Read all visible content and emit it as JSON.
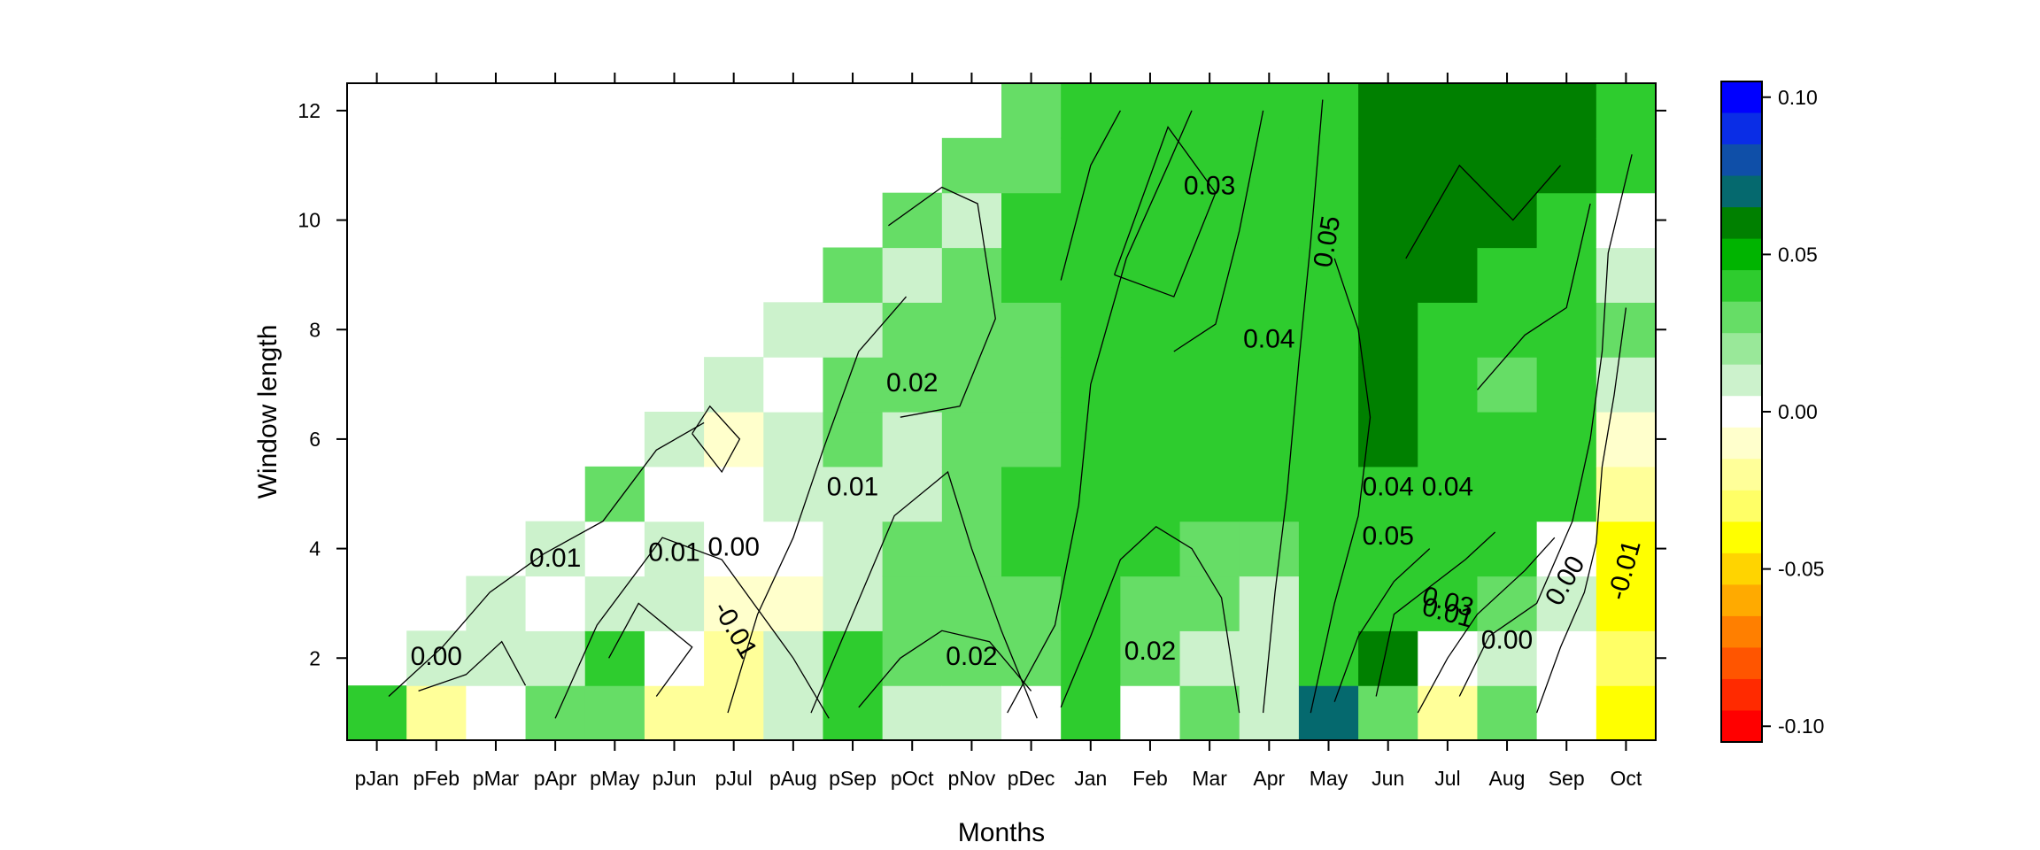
{
  "chart_data": {
    "type": "heatmap",
    "xlabel": "Months",
    "ylabel": "Window length",
    "months": [
      "pJan",
      "pFeb",
      "pMar",
      "pApr",
      "pMay",
      "pJun",
      "pJul",
      "pAug",
      "pSep",
      "pOct",
      "pNov",
      "pDec",
      "Jan",
      "Feb",
      "Mar",
      "Apr",
      "May",
      "Jun",
      "Jul",
      "Aug",
      "Sep",
      "Oct"
    ],
    "y_ticks": [
      2,
      4,
      6,
      8,
      10,
      12
    ],
    "y_range": [
      0.5,
      12.5
    ],
    "window_lengths": [
      1,
      2,
      3,
      4,
      5,
      6,
      7,
      8,
      9,
      10,
      11,
      12
    ],
    "colorbar": {
      "ticks": [
        {
          "value": 0.1,
          "label": "0.10"
        },
        {
          "value": 0.05,
          "label": "0.05"
        },
        {
          "value": 0.0,
          "label": "0.00"
        },
        {
          "value": -0.05,
          "label": "-0.05"
        },
        {
          "value": -0.1,
          "label": "-0.10"
        }
      ],
      "levels_top_to_bottom": [
        "#0000ff",
        "#0a2de6",
        "#0f4fa8",
        "#05696e",
        "#008000",
        "#00b400",
        "#2ecc2e",
        "#66dd66",
        "#99e899",
        "#ccf2cc",
        "#ffffff",
        "#ffffcc",
        "#ffff99",
        "#ffff66",
        "#ffff00",
        "#ffd400",
        "#ffaa00",
        "#ff7f00",
        "#ff5500",
        "#ff2a00",
        "#ff0000"
      ]
    },
    "values_by_month": [
      {
        "month": "pJan",
        "values": [
          0.035
        ]
      },
      {
        "month": "pFeb",
        "values": [
          -0.015,
          0.015
        ]
      },
      {
        "month": "pMar",
        "values": [
          0.0,
          0.005,
          0.015
        ]
      },
      {
        "month": "pApr",
        "values": [
          0.025,
          0.015,
          0.0,
          0.015
        ]
      },
      {
        "month": "pMay",
        "values": [
          0.025,
          0.035,
          0.015,
          0.0,
          0.025
        ]
      },
      {
        "month": "pJun",
        "values": [
          -0.015,
          0.0,
          0.015,
          0.015,
          0.0,
          0.015
        ]
      },
      {
        "month": "pJul",
        "values": [
          -0.015,
          -0.015,
          -0.005,
          0.0,
          0.0,
          -0.005,
          0.015
        ]
      },
      {
        "month": "pAug",
        "values": [
          0.015,
          0.015,
          -0.005,
          0.0,
          0.015,
          0.015,
          0.0,
          0.015
        ]
      },
      {
        "month": "pSep",
        "values": [
          0.035,
          0.035,
          0.015,
          0.015,
          0.015,
          0.025,
          0.025,
          0.015,
          0.025
        ]
      },
      {
        "month": "pOct",
        "values": [
          0.015,
          0.025,
          0.025,
          0.025,
          0.015,
          0.015,
          0.025,
          0.025,
          0.015,
          0.025
        ]
      },
      {
        "month": "pNov",
        "values": [
          0.015,
          0.025,
          0.025,
          0.025,
          0.025,
          0.025,
          0.025,
          0.025,
          0.025,
          0.015,
          0.025
        ]
      },
      {
        "month": "pDec",
        "values": [
          0.0,
          0.025,
          0.025,
          0.035,
          0.035,
          0.025,
          0.025,
          0.025,
          0.035,
          0.035,
          0.025,
          0.025
        ]
      },
      {
        "month": "Jan",
        "values": [
          0.045,
          0.035,
          0.035,
          0.045,
          0.045,
          0.045,
          0.035,
          0.035,
          0.035,
          0.035,
          0.035,
          0.035
        ]
      },
      {
        "month": "Feb",
        "values": [
          0.0,
          0.025,
          0.025,
          0.035,
          0.035,
          0.045,
          0.045,
          0.035,
          0.035,
          0.035,
          0.035,
          0.035
        ]
      },
      {
        "month": "Mar",
        "values": [
          0.025,
          0.015,
          0.025,
          0.025,
          0.035,
          0.045,
          0.045,
          0.045,
          0.035,
          0.035,
          0.035,
          0.035
        ]
      },
      {
        "month": "Apr",
        "values": [
          0.015,
          0.015,
          0.015,
          0.025,
          0.035,
          0.035,
          0.045,
          0.045,
          0.045,
          0.035,
          0.035,
          0.035
        ]
      },
      {
        "month": "May",
        "values": [
          0.07,
          0.045,
          0.045,
          0.035,
          0.045,
          0.045,
          0.045,
          0.045,
          0.045,
          0.045,
          0.045,
          0.035
        ]
      },
      {
        "month": "Jun",
        "values": [
          0.025,
          0.06,
          0.045,
          0.045,
          0.045,
          0.055,
          0.055,
          0.055,
          0.06,
          0.06,
          0.06,
          0.055
        ]
      },
      {
        "month": "Jul",
        "values": [
          -0.015,
          0.0,
          0.035,
          0.035,
          0.045,
          0.035,
          0.045,
          0.045,
          0.055,
          0.055,
          0.055,
          0.055
        ]
      },
      {
        "month": "Aug",
        "values": [
          0.025,
          0.015,
          0.025,
          0.035,
          0.045,
          0.035,
          0.025,
          0.045,
          0.045,
          0.055,
          0.055,
          0.055
        ]
      },
      {
        "month": "Sep",
        "values": [
          0.0,
          0.0,
          0.015,
          0.0,
          0.035,
          0.045,
          0.045,
          0.045,
          0.035,
          0.035,
          0.055,
          0.055
        ]
      },
      {
        "month": "Oct",
        "values": [
          -0.035,
          -0.025,
          -0.035,
          -0.035,
          -0.015,
          -0.005,
          0.015,
          0.025,
          0.015,
          0.0,
          0.035,
          0.035
        ]
      }
    ],
    "contour_labels": [
      {
        "text": "0.00",
        "month": "pFeb",
        "window": 2.0,
        "rotate": 0
      },
      {
        "text": "0.01",
        "month": "pApr",
        "window": 3.8,
        "rotate": 0
      },
      {
        "text": "0.01",
        "month": "pJun",
        "window": 3.9,
        "rotate": 0
      },
      {
        "text": "0.00",
        "month": "pJul",
        "window": 4.0,
        "rotate": 0
      },
      {
        "text": "-0.01",
        "month": "pJul",
        "window": 2.5,
        "rotate": 60
      },
      {
        "text": "0.01",
        "month": "pSep",
        "window": 5.1,
        "rotate": 0
      },
      {
        "text": "0.02",
        "month": "pOct",
        "window": 7.0,
        "rotate": 0
      },
      {
        "text": "0.02",
        "month": "pNov",
        "window": 2.0,
        "rotate": 0
      },
      {
        "text": "0.02",
        "month": "Feb",
        "window": 2.1,
        "rotate": 0
      },
      {
        "text": "0.03",
        "month": "Mar",
        "window": 10.6,
        "rotate": 0
      },
      {
        "text": "0.04",
        "month": "Apr",
        "window": 7.8,
        "rotate": 0
      },
      {
        "text": "0.05",
        "month": "May",
        "window": 9.6,
        "rotate": -80
      },
      {
        "text": "0.04",
        "month": "Jun",
        "window": 5.1,
        "rotate": 0
      },
      {
        "text": "0.05",
        "month": "Jun",
        "window": 4.2,
        "rotate": 0
      },
      {
        "text": "0.04",
        "month": "Jul",
        "window": 5.1,
        "rotate": 0
      },
      {
        "text": "0.03",
        "month": "Jul",
        "window": 3.0,
        "rotate": 15
      },
      {
        "text": "0.01",
        "month": "Jul",
        "window": 2.8,
        "rotate": 15
      },
      {
        "text": "0.00",
        "month": "Aug",
        "window": 2.3,
        "rotate": 0
      },
      {
        "text": "0.00",
        "month": "Sep",
        "window": 3.4,
        "rotate": -60
      },
      {
        "text": "-0.01",
        "month": "Oct",
        "window": 3.6,
        "rotate": -75
      }
    ]
  }
}
